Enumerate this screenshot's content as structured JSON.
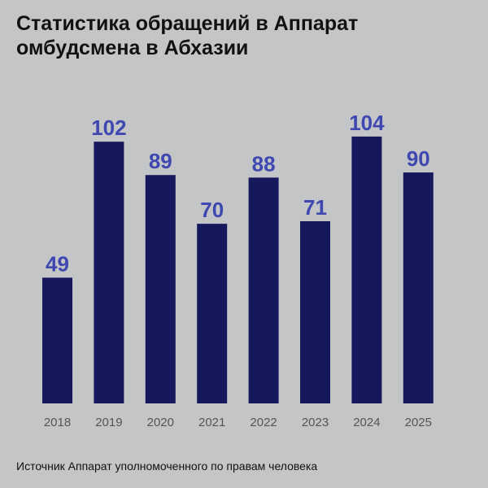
{
  "chart_data": {
    "type": "bar",
    "title": "Статистика обращений в Аппарат омбудсмена в Абхазии",
    "categories": [
      "2018",
      "2019",
      "2020",
      "2021",
      "2022",
      "2023",
      "2024",
      "2025"
    ],
    "values": [
      49,
      102,
      89,
      70,
      88,
      71,
      104,
      90
    ],
    "xlabel": "",
    "ylabel": "",
    "ylim": [
      0,
      104
    ],
    "grid": false,
    "colors": {
      "bar": "#16185e",
      "data_label": "#3f47b0",
      "background": "#c4c5c7"
    }
  },
  "source": "Источник Аппарат уполномоченного по правам человека"
}
